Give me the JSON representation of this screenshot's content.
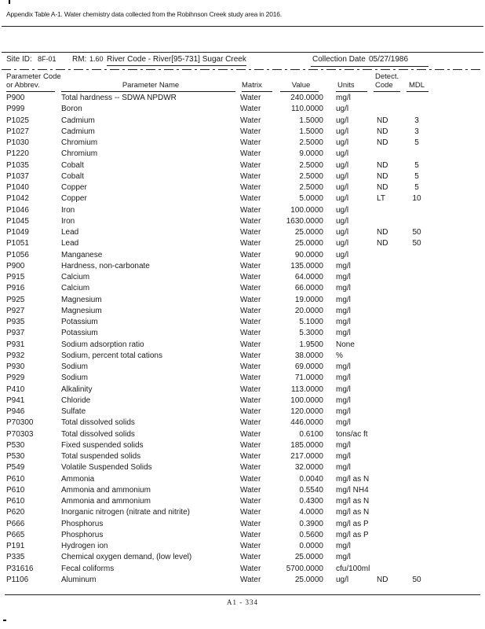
{
  "page": {
    "title": "Appendix Table A-1. Water chemistry data collected from the Robihnson Creek study area in 2016.",
    "footer": "A1 - 334"
  },
  "info": {
    "site_id_label": "Site ID:",
    "site_id_value": "8F-01",
    "rm_label": "RM:",
    "rm_value": "1.60",
    "river_code": "River Code - River[95-731] Sugar Creek",
    "collection_date_label": "Collection Date",
    "collection_date_value": "05/27/1986"
  },
  "table": {
    "headers": {
      "code": [
        "Parameter Code",
        "or Abbrev."
      ],
      "name": "Parameter Name",
      "matrix": "Matrix",
      "value": "Value",
      "units": "Units",
      "detect": [
        "Detect.",
        "Code"
      ],
      "mdl": "MDL"
    },
    "rows": [
      [
        "P900",
        "Total hardness -- SDWA NPDWR",
        "Water",
        "240.0000",
        "mg/l",
        "",
        ""
      ],
      [
        "P999",
        "Boron",
        "Water",
        "110.0000",
        "ug/l",
        "",
        ""
      ],
      [
        "P1025",
        "Cadmium",
        "Water",
        "1.5000",
        "ug/l",
        "ND",
        "3"
      ],
      [
        "P1027",
        "Cadmium",
        "Water",
        "1.5000",
        "ug/l",
        "ND",
        "3"
      ],
      [
        "P1030",
        "Chromium",
        "Water",
        "2.5000",
        "ug/l",
        "ND",
        "5"
      ],
      [
        "P1220",
        "Chromium",
        "Water",
        "9.0000",
        "ug/l",
        "",
        ""
      ],
      [
        "P1035",
        "Cobalt",
        "Water",
        "2.5000",
        "ug/l",
        "ND",
        "5"
      ],
      [
        "P1037",
        "Cobalt",
        "Water",
        "2.5000",
        "ug/l",
        "ND",
        "5"
      ],
      [
        "P1040",
        "Copper",
        "Water",
        "2.5000",
        "ug/l",
        "ND",
        "5"
      ],
      [
        "P1042",
        "Copper",
        "Water",
        "5.0000",
        "ug/l",
        "LT",
        "10"
      ],
      [
        "P1046",
        "Iron",
        "Water",
        "100.0000",
        "ug/l",
        "",
        ""
      ],
      [
        "P1045",
        "Iron",
        "Water",
        "1630.0000",
        "ug/l",
        "",
        ""
      ],
      [
        "P1049",
        "Lead",
        "Water",
        "25.0000",
        "ug/l",
        "ND",
        "50"
      ],
      [
        "P1051",
        "Lead",
        "Water",
        "25.0000",
        "ug/l",
        "ND",
        "50"
      ],
      [
        "P1056",
        "Manganese",
        "Water",
        "90.0000",
        "ug/l",
        "",
        ""
      ],
      [
        "P900",
        "Hardness, non-carbonate",
        "Water",
        "135.0000",
        "mg/l",
        "",
        ""
      ],
      [
        "P915",
        "Calcium",
        "Water",
        "64.0000",
        "mg/l",
        "",
        ""
      ],
      [
        "P916",
        "Calcium",
        "Water",
        "66.0000",
        "mg/l",
        "",
        ""
      ],
      [
        "P925",
        "Magnesium",
        "Water",
        "19.0000",
        "mg/l",
        "",
        ""
      ],
      [
        "P927",
        "Magnesium",
        "Water",
        "20.0000",
        "mg/l",
        "",
        ""
      ],
      [
        "P935",
        "Potassium",
        "Water",
        "5.1000",
        "mg/l",
        "",
        ""
      ],
      [
        "P937",
        "Potassium",
        "Water",
        "5.3000",
        "mg/l",
        "",
        ""
      ],
      [
        "P931",
        "Sodium adsorption ratio",
        "Water",
        "1.9500",
        "None",
        "",
        ""
      ],
      [
        "P932",
        "Sodium, percent total cations",
        "Water",
        "38.0000",
        "%",
        "",
        ""
      ],
      [
        "P930",
        "Sodium",
        "Water",
        "69.0000",
        "mg/l",
        "",
        ""
      ],
      [
        "P929",
        "Sodium",
        "Water",
        "71.0000",
        "mg/l",
        "",
        ""
      ],
      [
        "P410",
        "Alkalinity",
        "Water",
        "113.0000",
        "mg/l",
        "",
        ""
      ],
      [
        "P941",
        "Chloride",
        "Water",
        "100.0000",
        "mg/l",
        "",
        ""
      ],
      [
        "P946",
        "Sulfate",
        "Water",
        "120.0000",
        "mg/l",
        "",
        ""
      ],
      [
        "P70300",
        "Total dissolved solids",
        "Water",
        "446.0000",
        "mg/l",
        "",
        ""
      ],
      [
        "P70303",
        "Total dissolved solids",
        "Water",
        "0.6100",
        "tons/ac ft",
        "",
        ""
      ],
      [
        "P530",
        "Fixed suspended solids",
        "Water",
        "185.0000",
        "mg/l",
        "",
        ""
      ],
      [
        "P530",
        "Total suspended solids",
        "Water",
        "217.0000",
        "mg/l",
        "",
        ""
      ],
      [
        "P549",
        "Volatile Suspended Solids",
        "Water",
        "32.0000",
        "mg/l",
        "",
        ""
      ],
      [
        "P610",
        "Ammonia",
        "Water",
        "0.0040",
        "mg/l as N",
        "",
        ""
      ],
      [
        "P610",
        "Ammonia and ammonium",
        "Water",
        "0.5540",
        "mg/l NH4",
        "",
        ""
      ],
      [
        "P610",
        "Ammonia and ammonium",
        "Water",
        "0.4300",
        "mg/l as N",
        "",
        ""
      ],
      [
        "P620",
        "Inorganic nitrogen (nitrate and nitrite)",
        "Water",
        "4.0000",
        "mg/l as N",
        "",
        ""
      ],
      [
        "P666",
        "Phosphorus",
        "Water",
        "0.3900",
        "mg/l as P",
        "",
        ""
      ],
      [
        "P665",
        "Phosphorus",
        "Water",
        "0.5600",
        "mg/l as P",
        "",
        ""
      ],
      [
        "P191",
        "Hydrogen ion",
        "Water",
        "0.0000",
        "mg/l",
        "",
        ""
      ],
      [
        "P335",
        "Chemical oxygen demand, (low level)",
        "Water",
        "25.0000",
        "mg/l",
        "",
        ""
      ],
      [
        "P31616",
        "Fecal coliforms",
        "Water",
        "5700.0000",
        "cfu/100ml",
        "",
        ""
      ],
      [
        "P1106",
        "Aluminum",
        "Water",
        "25.0000",
        "ug/l",
        "ND",
        "50"
      ]
    ]
  }
}
